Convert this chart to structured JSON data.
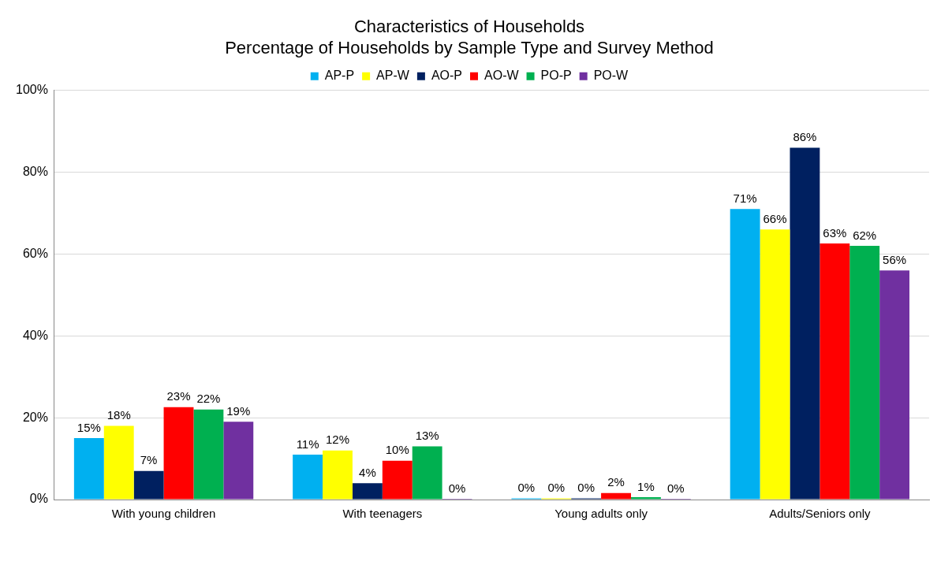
{
  "chart_data": {
    "type": "bar",
    "title": [
      "Characteristics of Households",
      "Percentage of Households by Sample Type and Survey Method"
    ],
    "categories": [
      "With young children",
      "With teenagers",
      "Young adults only",
      "Adults/Seniors only"
    ],
    "series": [
      {
        "name": "AP-P",
        "color": "#00b0f0",
        "values": [
          15,
          11,
          0.3,
          71
        ],
        "value_labels": [
          "15%",
          "11%",
          "0%",
          "71%"
        ]
      },
      {
        "name": "AP-W",
        "color": "#ffff00",
        "values": [
          18,
          12,
          0.3,
          66
        ],
        "value_labels": [
          "18%",
          "12%",
          "0%",
          "66%"
        ]
      },
      {
        "name": "AO-P",
        "color": "#002060",
        "values": [
          7,
          4,
          0.3,
          86
        ],
        "value_labels": [
          "7%",
          "4%",
          "0%",
          "86%"
        ]
      },
      {
        "name": "AO-W",
        "color": "#ff0000",
        "values": [
          22.6,
          9.5,
          1.6,
          62.6
        ],
        "value_labels": [
          "23%",
          "10%",
          "2%",
          "63%"
        ]
      },
      {
        "name": "PO-P",
        "color": "#00b050",
        "values": [
          22,
          13,
          0.6,
          62
        ],
        "value_labels": [
          "22%",
          "13%",
          "1%",
          "62%"
        ]
      },
      {
        "name": "PO-W",
        "color": "#7030a0",
        "values": [
          19,
          0.2,
          0.2,
          56
        ],
        "value_labels": [
          "19%",
          "0%",
          "0%",
          "56%"
        ]
      }
    ],
    "ylim": [
      0,
      100
    ],
    "yticks": [
      {
        "value": 0,
        "label": "0%"
      },
      {
        "value": 20,
        "label": "20%"
      },
      {
        "value": 40,
        "label": "40%"
      },
      {
        "value": 60,
        "label": "60%"
      },
      {
        "value": 80,
        "label": "80%"
      },
      {
        "value": 100,
        "label": "100%"
      }
    ],
    "grid": "y",
    "legend": "top"
  }
}
